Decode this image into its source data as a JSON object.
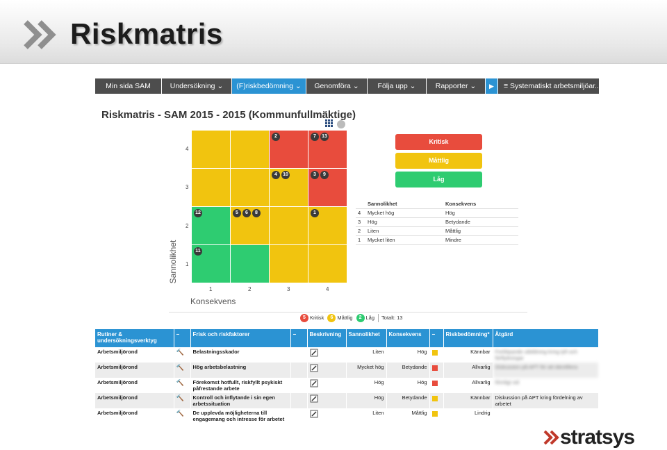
{
  "slide": {
    "title": "Riskmatris"
  },
  "nav": {
    "items": [
      {
        "label": "Min sida SAM"
      },
      {
        "label": "Undersökning ⌄"
      },
      {
        "label": "(F)riskbedömning ⌄"
      },
      {
        "label": "Genomföra ⌄"
      },
      {
        "label": "Följa upp ⌄"
      },
      {
        "label": "Rapporter ⌄"
      }
    ],
    "arrow": "▶",
    "last_label": "≡  Systematiskt arbetsmiljöar..."
  },
  "page_title": "Riskmatris - SAM 2015 - 2015 (Kommunfullmäktige)",
  "matrix": {
    "y_label": "Sannolikhet",
    "x_label": "Konsekvens",
    "y_ticks": [
      "4",
      "3",
      "2",
      "1"
    ],
    "x_ticks": [
      "1",
      "2",
      "3",
      "4"
    ],
    "colors": {
      "red": "#e84c3d",
      "yellow": "#f1c40f",
      "green": "#2ecc71"
    },
    "bubbles": {
      "r4c3": [
        "2"
      ],
      "r4c4": [
        "7",
        "13"
      ],
      "r3c3": [
        "4",
        "10"
      ],
      "r3c4": [
        "3",
        "9"
      ],
      "r2c1": [
        "12"
      ],
      "r2c2": [
        "5",
        "6",
        "8"
      ],
      "r2c4": [
        "1"
      ],
      "r1c1": [
        "11"
      ]
    }
  },
  "levels": {
    "kritisk": "Kritisk",
    "mattlig": "Måttlig",
    "lag": "Låg"
  },
  "key_table": {
    "headers": [
      "Sannolikhet",
      "Konsekvens"
    ],
    "rows": [
      [
        "4",
        "Mycket hög",
        "Hög"
      ],
      [
        "3",
        "Hög",
        "Betydande"
      ],
      [
        "2",
        "Liten",
        "Måttlig"
      ],
      [
        "1",
        "Mycket liten",
        "Mindre"
      ]
    ]
  },
  "totals": {
    "kritisk_count": "5",
    "kritisk_label": "Kritisk",
    "mattlig_count": "6",
    "mattlig_label": "Måttlig",
    "lag_count": "2",
    "lag_label": "Låg",
    "total": "Totalt: 13"
  },
  "table": {
    "headers": {
      "tool": "Rutiner & undersökningsverktyg",
      "minus1": "−",
      "factors": "Frisk och riskfaktorer",
      "minus2": "−",
      "description": "Beskrivning",
      "probability": "Sannolikhet",
      "consequence": "Konsekvens",
      "minus3": "−",
      "assessment": "Riskbedömning*",
      "action": "Åtgärd"
    },
    "rows": [
      {
        "tool": "Arbetsmiljörond",
        "factor": "Belastningsskador",
        "prob": "Liten",
        "cons": "Hög",
        "color": "#f1c40f",
        "assessment": "Kännbar",
        "action": "Fortlöpande utbildning kring lyft och förflyttningar",
        "blurred": true
      },
      {
        "tool": "Arbetsmiljörond",
        "factor": "Hög arbetsbelastning",
        "prob": "Mycket hög",
        "cons": "Betydande",
        "color": "#e84c3d",
        "assessment": "Allvarlig",
        "action": "Diskussion på APT för att identifiera",
        "blurred": true
      },
      {
        "tool": "Arbetsmiljörond",
        "factor": "Förekomst hotfullt, riskfyllt psykiskt påfrestande arbete",
        "prob": "Hög",
        "cons": "Hög",
        "color": "#e84c3d",
        "assessment": "Allvarlig",
        "action": "Rimligt vid",
        "blurred": true
      },
      {
        "tool": "Arbetsmiljörond",
        "factor": "Kontroll och inflytande i sin egen arbetssituation",
        "prob": "Hög",
        "cons": "Betydande",
        "color": "#f1c40f",
        "assessment": "Kännbar",
        "action": "Diskussion på APT kring fördelning av arbetet",
        "blurred": false
      },
      {
        "tool": "Arbetsmiljörond",
        "factor": "De upplevda möjligheterna till engagemang och intresse för arbetet",
        "prob": "Liten",
        "cons": "Måttlig",
        "color": "#f1c40f",
        "assessment": "Lindrig",
        "action": "",
        "blurred": false
      }
    ]
  },
  "logo": {
    "text": "stratsys"
  }
}
